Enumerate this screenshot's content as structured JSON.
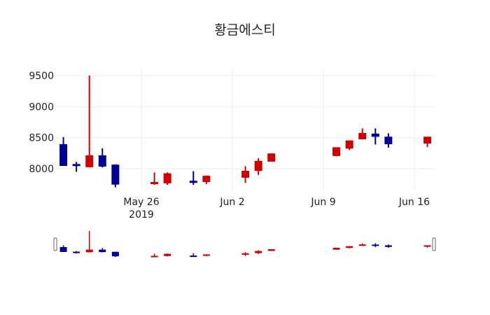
{
  "title": "황금에스티",
  "colors": {
    "increasing": "#d10000",
    "decreasing": "#000099",
    "grid": "#eeeeee"
  },
  "chart_data": {
    "type": "candlestick",
    "title": "황금에스티",
    "xlabel": "",
    "ylabel": "",
    "ylim": [
      7660,
      9560
    ],
    "grid": true,
    "y_ticks": [
      8000,
      8500,
      9000,
      9500
    ],
    "x_ticks": [
      {
        "date": "2019-05-26",
        "label": "May 26",
        "sublabel": "2019"
      },
      {
        "date": "2019-06-02",
        "label": "Jun 2"
      },
      {
        "date": "2019-06-09",
        "label": "Jun 9"
      },
      {
        "date": "2019-06-16",
        "label": "Jun 16"
      }
    ],
    "rangeslider": true,
    "x": [
      "2019-05-20",
      "2019-05-21",
      "2019-05-22",
      "2019-05-23",
      "2019-05-24",
      "2019-05-27",
      "2019-05-28",
      "2019-05-30",
      "2019-05-31",
      "2019-06-03",
      "2019-06-04",
      "2019-06-05",
      "2019-06-10",
      "2019-06-11",
      "2019-06-12",
      "2019-06-13",
      "2019-06-14",
      "2019-06-17"
    ],
    "open": [
      8390,
      8070,
      8030,
      8210,
      8060,
      7760,
      7770,
      7800,
      7790,
      7860,
      7970,
      8120,
      8210,
      8330,
      8480,
      8560,
      8510,
      8410
    ],
    "high": [
      8510,
      8110,
      9500,
      8330,
      8070,
      7940,
      7940,
      7960,
      7890,
      8040,
      8170,
      8240,
      8340,
      8450,
      8650,
      8650,
      8570,
      8500
    ],
    "low": [
      8050,
      7950,
      8020,
      8020,
      7700,
      7740,
      7740,
      7740,
      7750,
      7770,
      7900,
      8120,
      8200,
      8300,
      8480,
      8390,
      8340,
      8350
    ],
    "close": [
      8050,
      8050,
      8210,
      8040,
      7750,
      7780,
      7920,
      7790,
      7880,
      7960,
      8120,
      8240,
      8340,
      8450,
      8570,
      8520,
      8400,
      8510
    ]
  }
}
